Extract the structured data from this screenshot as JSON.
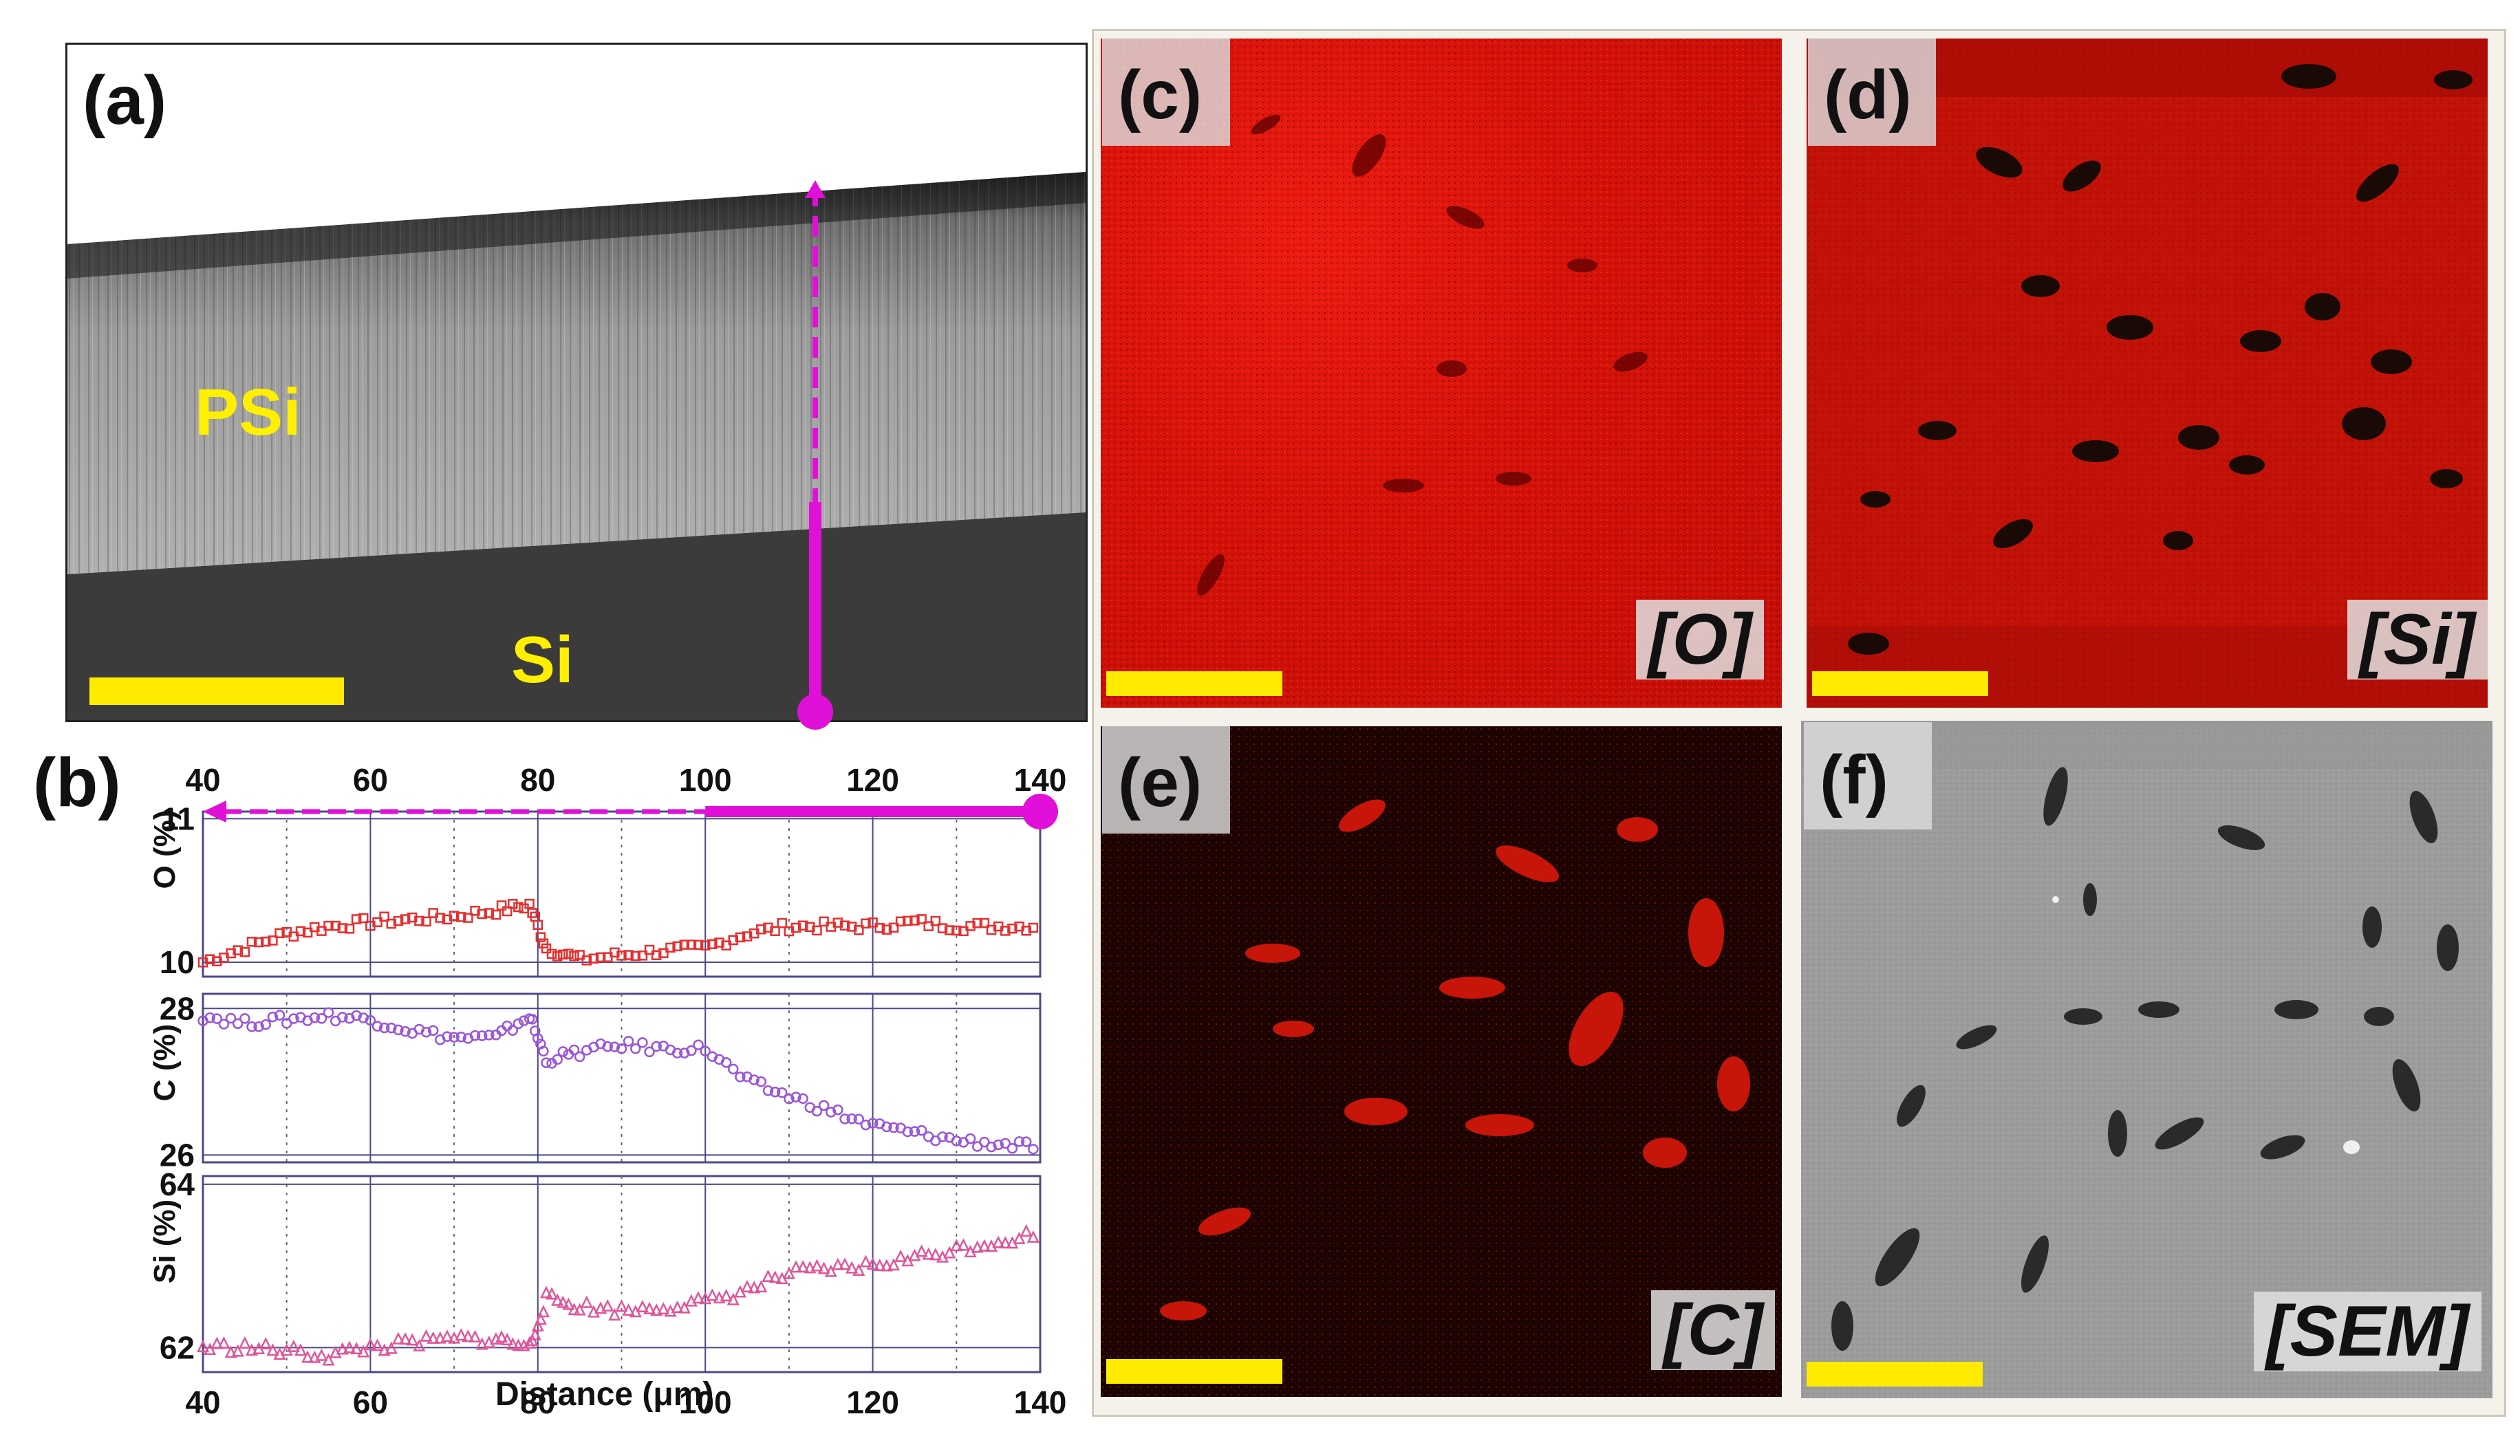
{
  "panel_a": {
    "label": "(a)",
    "layer_top": "PSi",
    "layer_bottom": "Si"
  },
  "panel_b": {
    "label": "(b)",
    "xlabel": "Distance (μm)",
    "colors": {
      "O": "#e53030",
      "C": "#9a55d8",
      "Si": "#e0559a",
      "arrow": "#e010d8",
      "frame": "#4a4a8a"
    }
  },
  "panel_c": {
    "label": "(c)",
    "tag": "[O]"
  },
  "panel_d": {
    "label": "(d)",
    "tag": "[Si]"
  },
  "panel_e": {
    "label": "(e)",
    "tag": "[C]"
  },
  "panel_f": {
    "label": "(f)",
    "tag": "[SEM]"
  },
  "chart_data": [
    {
      "type": "scatter",
      "title": "",
      "xlabel": "Distance (μm)",
      "ylabel": "O (%)",
      "xlim": [
        40,
        140
      ],
      "xticks": [
        40,
        60,
        80,
        100,
        120,
        140
      ],
      "ylim": [
        9.9,
        11.05
      ],
      "yticks": [
        10,
        11
      ],
      "series": [
        {
          "name": "O",
          "x": [
            40,
            45,
            50,
            55,
            60,
            65,
            70,
            75,
            79,
            81,
            85,
            90,
            95,
            100,
            105,
            110,
            115,
            120,
            125,
            130,
            135,
            140
          ],
          "y": [
            10.0,
            10.1,
            10.2,
            10.25,
            10.28,
            10.3,
            10.32,
            10.36,
            10.4,
            10.1,
            10.02,
            10.05,
            10.08,
            10.1,
            10.2,
            10.25,
            10.25,
            10.25,
            10.28,
            10.25,
            10.25,
            10.25
          ]
        }
      ]
    },
    {
      "type": "scatter",
      "title": "",
      "xlabel": "Distance (μm)",
      "ylabel": "C (%)",
      "xlim": [
        40,
        140
      ],
      "xticks": [
        40,
        60,
        80,
        100,
        120,
        140
      ],
      "ylim": [
        25.9,
        28.2
      ],
      "yticks": [
        26,
        28
      ],
      "series": [
        {
          "name": "C",
          "x": [
            40,
            45,
            50,
            55,
            60,
            65,
            70,
            75,
            79,
            81,
            85,
            90,
            95,
            100,
            105,
            110,
            115,
            120,
            125,
            130,
            135,
            140
          ],
          "y": [
            27.9,
            27.8,
            27.85,
            27.9,
            27.85,
            27.7,
            27.6,
            27.6,
            27.9,
            27.3,
            27.4,
            27.5,
            27.45,
            27.45,
            27.0,
            26.8,
            26.6,
            26.4,
            26.3,
            26.2,
            26.15,
            26.1
          ]
        }
      ]
    },
    {
      "type": "scatter",
      "title": "",
      "xlabel": "Distance (μm)",
      "ylabel": "Si (%)",
      "xlim": [
        40,
        140
      ],
      "xticks": [
        40,
        60,
        80,
        100,
        120,
        140
      ],
      "ylim": [
        61.7,
        64.1
      ],
      "yticks": [
        62,
        64
      ],
      "series": [
        {
          "name": "Si",
          "x": [
            40,
            45,
            50,
            55,
            60,
            65,
            70,
            75,
            79,
            81,
            85,
            90,
            95,
            100,
            105,
            110,
            115,
            120,
            125,
            130,
            135,
            140
          ],
          "y": [
            62.0,
            62.0,
            61.95,
            61.9,
            62.0,
            62.05,
            62.1,
            62.1,
            62.0,
            62.6,
            62.5,
            62.45,
            62.5,
            62.55,
            62.7,
            62.9,
            62.95,
            63.0,
            63.1,
            63.2,
            63.3,
            63.4
          ]
        }
      ]
    }
  ]
}
